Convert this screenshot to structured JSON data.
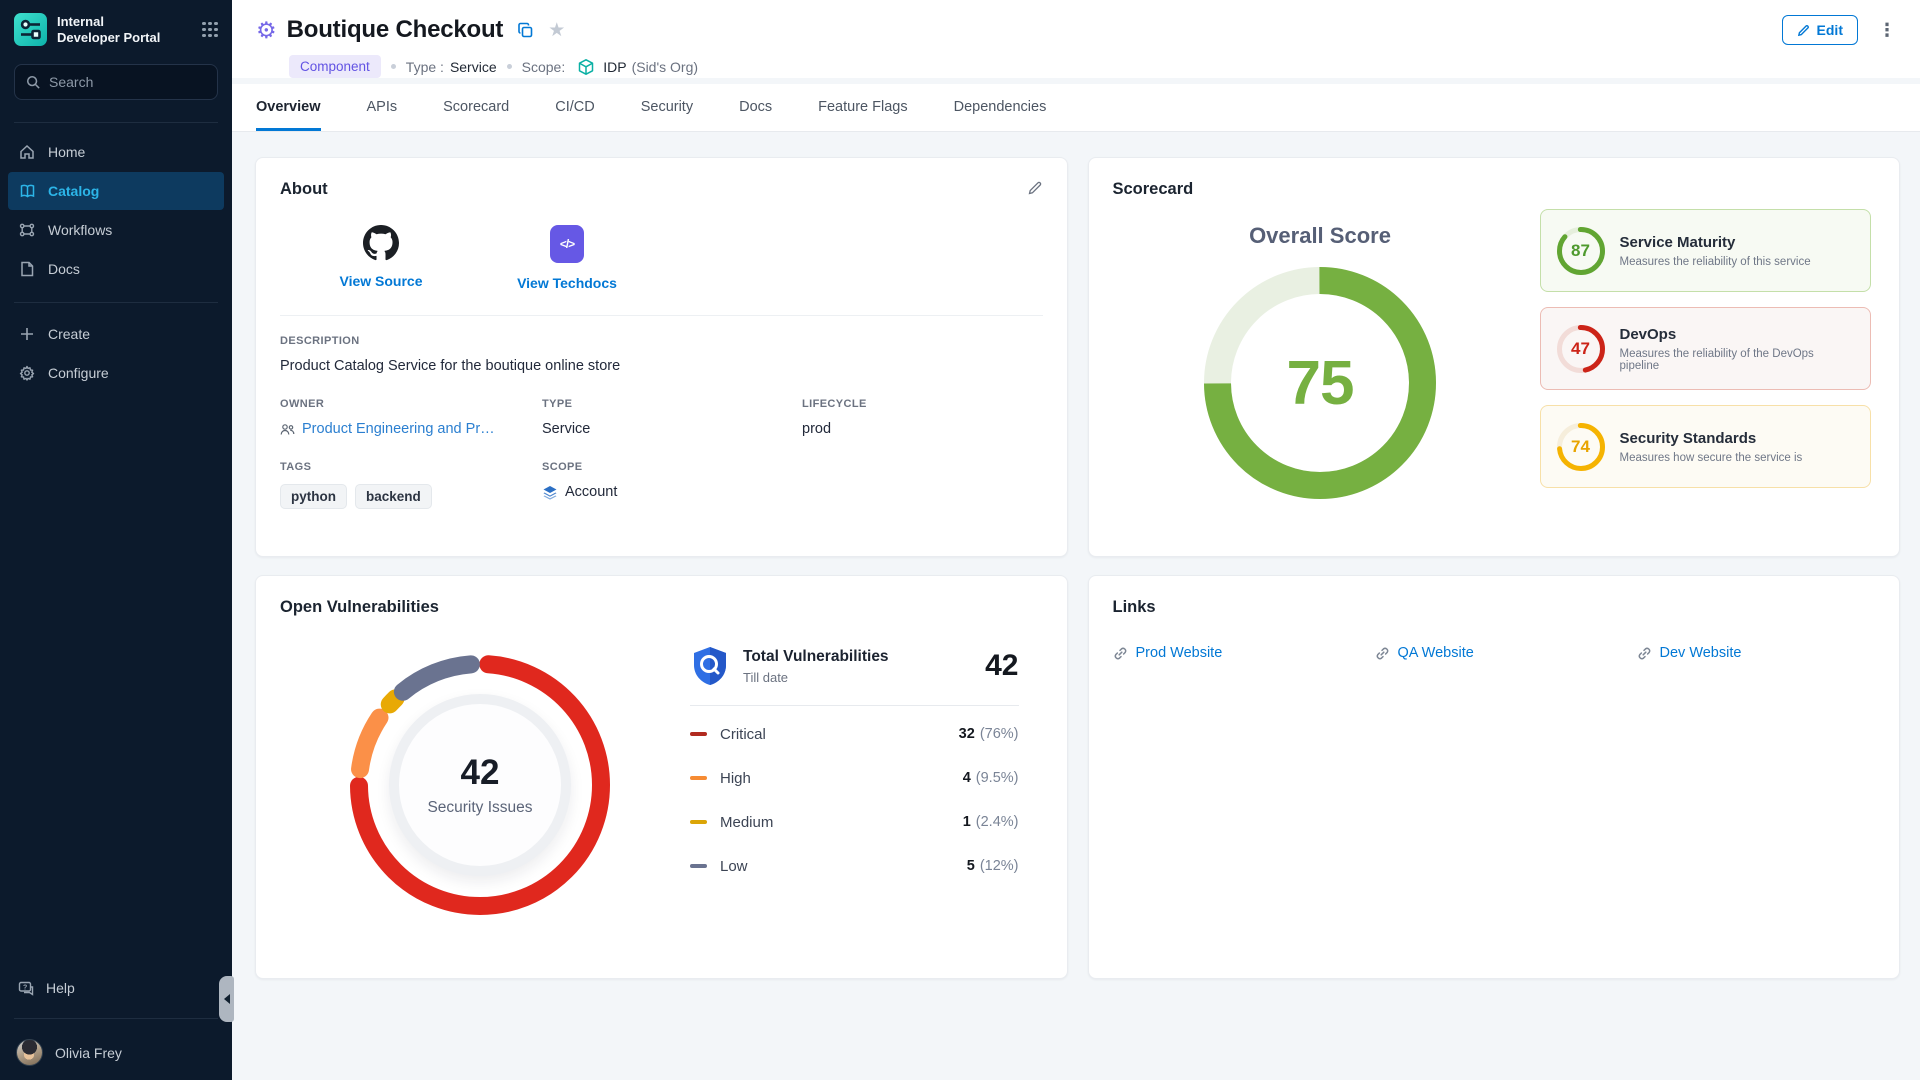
{
  "app": {
    "name_line1": "Internal",
    "name_line2": "Developer Portal"
  },
  "sidebar": {
    "search_placeholder": "Search",
    "items": [
      {
        "label": "Home"
      },
      {
        "label": "Catalog"
      },
      {
        "label": "Workflows"
      },
      {
        "label": "Docs"
      }
    ],
    "actions": [
      {
        "label": "Create"
      },
      {
        "label": "Configure"
      }
    ],
    "help_label": "Help",
    "user_name": "Olivia Frey"
  },
  "header": {
    "title": "Boutique Checkout",
    "kind_badge": "Component",
    "type_label": "Type :",
    "type_value": "Service",
    "scope_label": "Scope:",
    "scope_value": "IDP",
    "scope_org": "(Sid's Org)",
    "edit_label": "Edit"
  },
  "tabs": [
    {
      "label": "Overview"
    },
    {
      "label": "APIs"
    },
    {
      "label": "Scorecard"
    },
    {
      "label": "CI/CD"
    },
    {
      "label": "Security"
    },
    {
      "label": "Docs"
    },
    {
      "label": "Feature Flags"
    },
    {
      "label": "Dependencies"
    }
  ],
  "about": {
    "title": "About",
    "view_source": "View Source",
    "view_techdocs": "View Techdocs",
    "techdocs_glyph": "</>",
    "description_label": "DESCRIPTION",
    "description": "Product Catalog Service for the boutique online store",
    "owner_label": "OWNER",
    "owner": "Product Engineering and Product...",
    "type_label": "TYPE",
    "type": "Service",
    "lifecycle_label": "LIFECYCLE",
    "lifecycle": "prod",
    "tags_label": "TAGS",
    "tags": [
      "python",
      "backend"
    ],
    "scope_label": "SCOPE",
    "scope": "Account"
  },
  "scorecard": {
    "title": "Scorecard",
    "overall_label": "Overall Score",
    "overall": {
      "value": 75,
      "color": "#76b041",
      "track": "#e9f0e2"
    },
    "items": [
      {
        "title": "Service Maturity",
        "desc": "Measures the reliability of this service",
        "ring": {
          "value": 87,
          "color": "#61a532",
          "track": "#e6efdc"
        },
        "border": "#c4dfa9",
        "bg": "#f7faf3",
        "num_color": "#4f9a2e"
      },
      {
        "title": "DevOps",
        "desc": "Measures the reliability of the DevOps pipeline",
        "ring": {
          "value": 47,
          "color": "#cc2418",
          "track": "#f2dcd8"
        },
        "border": "#ecbcb4",
        "bg": "#faf6f5",
        "num_color": "#cc2418"
      },
      {
        "title": "Security Standards",
        "desc": "Measures how secure the service is",
        "ring": {
          "value": 74,
          "color": "#f5b301",
          "track": "#f6eedb"
        },
        "border": "#f7e0a8",
        "bg": "#fdfbf4",
        "num_color": "#e8a400"
      }
    ]
  },
  "vulnerabilities": {
    "title": "Open Vulnerabilities",
    "center_value": "42",
    "center_label": "Security Issues",
    "summary_title": "Total Vulnerabilities",
    "summary_sub": "Till date",
    "summary_total": "42",
    "donut": {
      "gap": 2.2,
      "segments": [
        {
          "pct": 76,
          "color": "#e0281e"
        },
        {
          "pct": 9.5,
          "color": "#fb9048"
        },
        {
          "pct": 2.4,
          "color": "#e8a905"
        },
        {
          "pct": 12,
          "color": "#6a7390"
        }
      ]
    },
    "rows": [
      {
        "label": "Critical",
        "value": "32",
        "pct": "(76%)",
        "color": "#b12a1f"
      },
      {
        "label": "High",
        "value": "4",
        "pct": "(9.5%)",
        "color": "#f68b33"
      },
      {
        "label": "Medium",
        "value": "1",
        "pct": "(2.4%)",
        "color": "#dba506"
      },
      {
        "label": "Low",
        "value": "5",
        "pct": "(12%)",
        "color": "#6a7390"
      }
    ]
  },
  "links": {
    "title": "Links",
    "items": [
      {
        "label": "Prod Website"
      },
      {
        "label": "QA Website"
      },
      {
        "label": "Dev Website"
      }
    ]
  },
  "chart_data": [
    {
      "type": "pie",
      "title": "Open Vulnerabilities",
      "center_label": "42 Security Issues",
      "categories": [
        "Critical",
        "High",
        "Medium",
        "Low"
      ],
      "values": [
        32,
        4,
        1,
        5
      ],
      "percents": [
        76,
        9.5,
        2.4,
        12
      ],
      "colors": [
        "#e0281e",
        "#fb9048",
        "#e8a905",
        "#6a7390"
      ],
      "total": 42,
      "legend_position": "right"
    },
    {
      "type": "gauge",
      "title": "Overall Score",
      "value": 75,
      "max": 100,
      "color": "#76b041"
    },
    {
      "type": "gauge",
      "title": "Sub Scores",
      "categories": [
        "Service Maturity",
        "DevOps",
        "Security Standards"
      ],
      "values": [
        87,
        47,
        74
      ],
      "max": 100,
      "colors": [
        "#61a532",
        "#cc2418",
        "#f5b301"
      ]
    }
  ]
}
